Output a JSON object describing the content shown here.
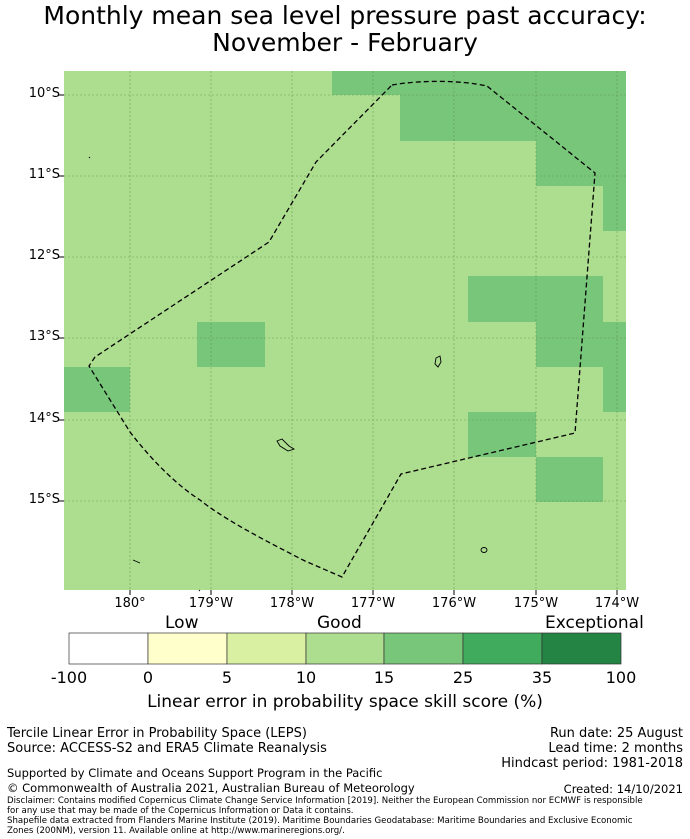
{
  "title": {
    "line1": "Monthly mean sea level pressure past accuracy:",
    "line2": "November - February"
  },
  "map": {
    "background_color": "#addd8e",
    "grid_color": "#5a8f4a",
    "lat_ticks": [
      "10°S",
      "11°S",
      "12°S",
      "13°S",
      "14°S",
      "15°S"
    ],
    "lon_ticks": [
      "180°",
      "179°W",
      "178°W",
      "177°W",
      "176°W",
      "175°W",
      "174°W"
    ]
  },
  "colorbar": {
    "categories": [
      "Low",
      "Good",
      "Exceptional"
    ],
    "labels": [
      "-100",
      "0",
      "5",
      "10",
      "15",
      "25",
      "35",
      "100"
    ],
    "colors": [
      "#ffffff",
      "#ffffcc",
      "#d9f0a3",
      "#addd8e",
      "#78c679",
      "#41ab5d",
      "#238443"
    ],
    "title": "Linear error in probability space skill score (%)"
  },
  "footer": {
    "product": "Tercile Linear Error in Probability Space (LEPS)",
    "source": "Source: ACCESS-S2 and ERA5 Climate Reanalysis",
    "run_date": "Run date: 25 August",
    "lead_time": "Lead time: 2 months",
    "hindcast": "Hindcast period: 1981-2018",
    "support": "Supported by Climate and Oceans Support Program in the Pacific",
    "copyright": "© Commonwealth of Australia 2021, Australian Bureau of Meteorology",
    "created": "Created: 14/10/2021",
    "disclaimer": "Disclaimer: Contains modified Copernicus Climate Change Service Information [2019]. Neither the European Commission nor ECMWF is responsible for any use that may be made of the Copernicus Information or Data it contains.",
    "shapefile": "Shapefile data extracted from Flanders Marine Institute (2019). Maritime Boundaries Geodatabase: Maritime Boundaries and Exclusive Economic Zones (200NM), version 11. Available online at http://www.marineregions.org/."
  }
}
